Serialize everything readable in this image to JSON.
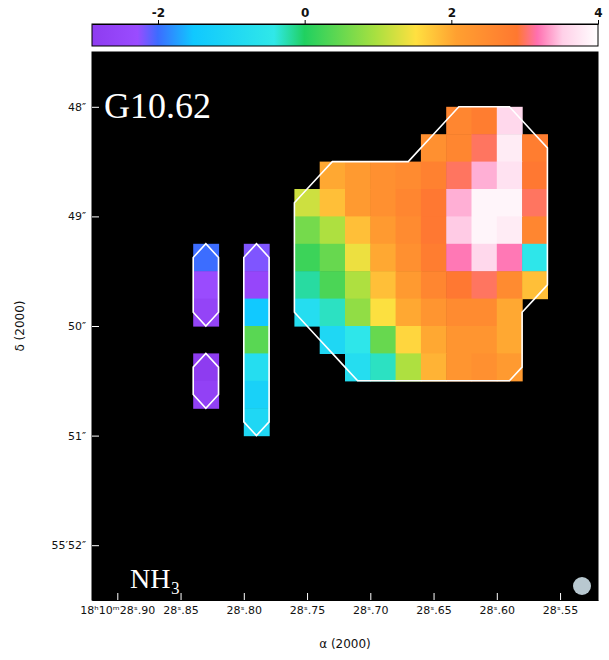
{
  "chart_data": {
    "type": "heatmap",
    "annotations": [
      "G10.62",
      "NH₃"
    ],
    "x_label": "α (2000)",
    "y_label": "δ (2000)",
    "xlim": [
      28.92,
      28.52
    ],
    "xticks": [
      {
        "value": 28.9,
        "label": "18ʰ10ᵐ28ˢ.90"
      },
      {
        "value": 28.85,
        "label": "28ˢ.85"
      },
      {
        "value": 28.8,
        "label": "28ˢ.80"
      },
      {
        "value": 28.75,
        "label": "28ˢ.75"
      },
      {
        "value": 28.7,
        "label": "28ˢ.70"
      },
      {
        "value": 28.65,
        "label": "28ˢ.65"
      },
      {
        "value": 28.6,
        "label": "28ˢ.60"
      },
      {
        "value": 28.55,
        "label": "28ˢ.55"
      }
    ],
    "ylim": [
      47.5,
      52.5
    ],
    "yticks": [
      {
        "value": 48,
        "label": "48″"
      },
      {
        "value": 49,
        "label": "49″"
      },
      {
        "value": 50,
        "label": "50″"
      },
      {
        "value": 51,
        "label": "51″"
      },
      {
        "value": 52,
        "label": "55′52″"
      }
    ],
    "x": [
      28.91,
      28.89,
      28.87,
      28.85,
      28.83,
      28.81,
      28.79,
      28.77,
      28.75,
      28.73,
      28.71,
      28.69,
      28.67,
      28.65,
      28.63,
      28.61,
      28.59,
      28.57,
      28.55,
      28.53
    ],
    "y": [
      47.625,
      47.875,
      48.125,
      48.375,
      48.625,
      48.875,
      49.125,
      49.375,
      49.625,
      49.875,
      50.125,
      50.375,
      50.625,
      50.875,
      51.125,
      51.375,
      51.625,
      51.875,
      52.125,
      52.375
    ],
    "values": [
      [
        null,
        null,
        null,
        null,
        null,
        null,
        null,
        null,
        null,
        null,
        null,
        null,
        null,
        null,
        null,
        null,
        null,
        null,
        null,
        null
      ],
      [
        null,
        null,
        null,
        null,
        null,
        null,
        null,
        null,
        null,
        null,
        null,
        null,
        null,
        null,
        null,
        null,
        null,
        null,
        null,
        null
      ],
      [
        null,
        null,
        null,
        null,
        null,
        null,
        null,
        null,
        null,
        null,
        null,
        null,
        null,
        null,
        2.6,
        2.8,
        3.6,
        null,
        null,
        null
      ],
      [
        null,
        null,
        null,
        null,
        null,
        null,
        null,
        null,
        null,
        null,
        null,
        null,
        null,
        2.4,
        2.6,
        3.0,
        3.8,
        2.8,
        null,
        null
      ],
      [
        null,
        null,
        null,
        null,
        null,
        null,
        null,
        null,
        null,
        2.0,
        2.2,
        2.4,
        2.5,
        2.7,
        3.0,
        3.4,
        3.7,
        2.9,
        null,
        null
      ],
      [
        null,
        null,
        null,
        null,
        null,
        null,
        null,
        null,
        1.2,
        1.8,
        2.2,
        2.4,
        2.6,
        2.9,
        3.4,
        3.9,
        3.9,
        3.0,
        null,
        null
      ],
      [
        null,
        null,
        null,
        null,
        null,
        null,
        null,
        null,
        0.6,
        1.0,
        1.8,
        2.2,
        2.5,
        2.9,
        3.5,
        3.9,
        3.8,
        2.6,
        null,
        null
      ],
      [
        null,
        null,
        null,
        null,
        -2.0,
        null,
        -2.2,
        null,
        0.2,
        0.5,
        1.4,
        2.0,
        2.4,
        2.8,
        3.2,
        3.6,
        3.2,
        -0.5,
        null,
        null
      ],
      [
        null,
        null,
        null,
        null,
        -2.3,
        null,
        -2.5,
        null,
        -0.2,
        0.3,
        1.0,
        1.8,
        2.2,
        2.6,
        2.9,
        3.0,
        2.5,
        1.8,
        null,
        null
      ],
      [
        null,
        null,
        null,
        null,
        -2.6,
        null,
        -1.5,
        null,
        -0.8,
        -0.3,
        0.8,
        1.5,
        2.0,
        2.3,
        2.5,
        2.5,
        2.0,
        null,
        null,
        null
      ],
      [
        null,
        null,
        null,
        null,
        null,
        null,
        0.4,
        null,
        null,
        -1.0,
        -0.5,
        0.5,
        1.6,
        2.0,
        2.3,
        2.3,
        2.0,
        null,
        null,
        null
      ],
      [
        null,
        null,
        null,
        null,
        -2.9,
        null,
        -0.8,
        null,
        null,
        null,
        -0.8,
        -0.3,
        1.0,
        1.9,
        2.3,
        2.4,
        2.2,
        null,
        null,
        null
      ],
      [
        null,
        null,
        null,
        null,
        -2.7,
        null,
        -1.2,
        null,
        null,
        null,
        null,
        null,
        null,
        null,
        null,
        null,
        null,
        null,
        null,
        null
      ],
      [
        null,
        null,
        null,
        null,
        null,
        null,
        -1.0,
        null,
        null,
        null,
        null,
        null,
        null,
        null,
        null,
        null,
        null,
        null,
        null,
        null
      ],
      [
        null,
        null,
        null,
        null,
        null,
        null,
        null,
        null,
        null,
        null,
        null,
        null,
        null,
        null,
        null,
        null,
        null,
        null,
        null,
        null
      ],
      [
        null,
        null,
        null,
        null,
        null,
        null,
        null,
        null,
        null,
        null,
        null,
        null,
        null,
        null,
        null,
        null,
        null,
        null,
        null,
        null
      ],
      [
        null,
        null,
        null,
        null,
        null,
        null,
        null,
        null,
        null,
        null,
        null,
        null,
        null,
        null,
        null,
        null,
        null,
        null,
        null,
        null
      ],
      [
        null,
        null,
        null,
        null,
        null,
        null,
        null,
        null,
        null,
        null,
        null,
        null,
        null,
        null,
        null,
        null,
        null,
        null,
        null,
        null
      ],
      [
        null,
        null,
        null,
        null,
        null,
        null,
        null,
        null,
        null,
        null,
        null,
        null,
        null,
        null,
        null,
        null,
        null,
        null,
        null,
        null
      ],
      [
        null,
        null,
        null,
        null,
        null,
        null,
        null,
        null,
        null,
        null,
        null,
        null,
        null,
        null,
        null,
        null,
        null,
        null,
        null,
        null
      ]
    ],
    "colorbar": {
      "range": [
        -2.9,
        4
      ],
      "ticks": [
        -2,
        0,
        2,
        4
      ]
    }
  }
}
